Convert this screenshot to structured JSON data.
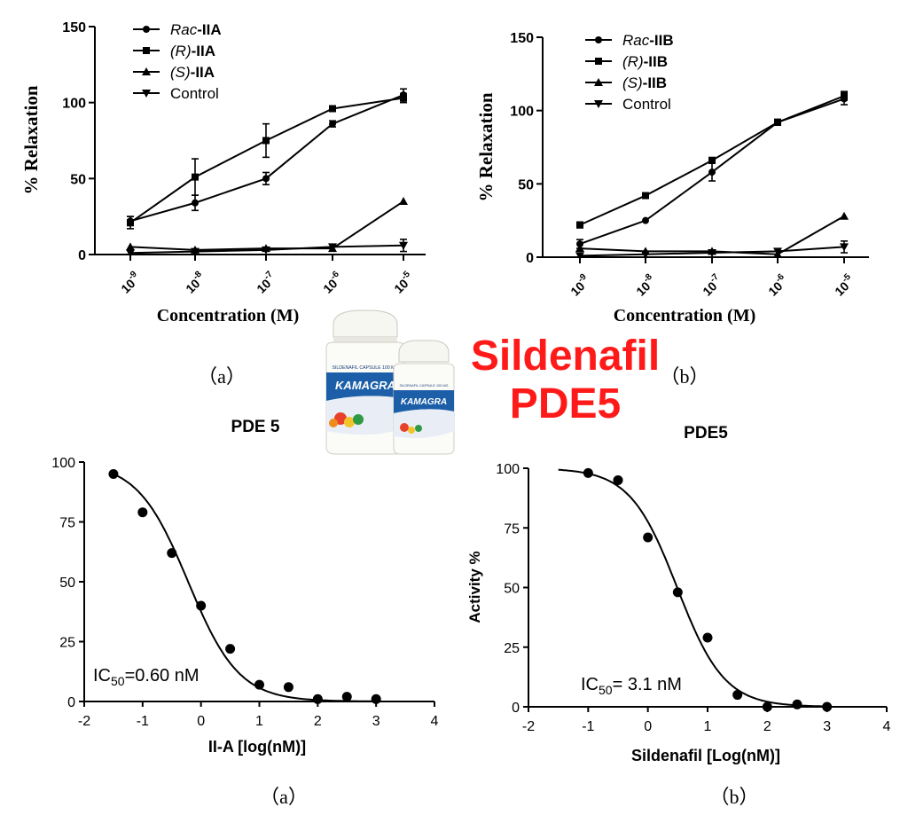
{
  "overlay": {
    "line1": "Sildenafil",
    "line2": "PDE5",
    "color": "#ff1a1a",
    "product_label_brand": "KAMAGRA",
    "product_label_text": "SILDENAFIL CAPSULE 100 MG"
  },
  "chart_data": [
    {
      "id": "top-left",
      "type": "line",
      "panel_label": "（a）",
      "xlabel": "Concentration (M)",
      "ylabel": "% Relaxation",
      "x_scale": "log",
      "x": [
        1e-09,
        1e-08,
        1e-07,
        1e-06,
        1e-05
      ],
      "x_ticks": [
        {
          "base": "10",
          "exp": "-9"
        },
        {
          "base": "10",
          "exp": "-8"
        },
        {
          "base": "10",
          "exp": "-7"
        },
        {
          "base": "10",
          "exp": "-6"
        },
        {
          "base": "10",
          "exp": "-5"
        }
      ],
      "ylim": [
        0,
        150
      ],
      "y_ticks": [
        "0",
        "50",
        "100",
        "150"
      ],
      "legend_position": "top-left",
      "series": [
        {
          "name_italic": "Rac",
          "name_rest": "-IIA",
          "marker": "circle",
          "values": [
            22,
            34,
            50,
            86,
            105
          ],
          "errors": [
            3,
            5,
            4,
            2,
            4
          ]
        },
        {
          "name_italic": "(R)",
          "name_rest": "-IIA",
          "marker": "square",
          "values": [
            21,
            51,
            75,
            96,
            103
          ],
          "errors": [
            4,
            12,
            11,
            1,
            3
          ]
        },
        {
          "name_italic": "(S)",
          "name_rest": "-IIA",
          "marker": "triangle-up",
          "values": [
            5,
            3,
            4,
            4,
            35
          ],
          "errors": [
            1,
            1,
            1,
            1,
            1
          ]
        },
        {
          "name": "Control",
          "marker": "triangle-down",
          "values": [
            1,
            2,
            3,
            5,
            6
          ],
          "errors": [
            0,
            1,
            1,
            1,
            4
          ]
        }
      ]
    },
    {
      "id": "top-right",
      "type": "line",
      "panel_label": "（b）",
      "xlabel": "Concentration (M)",
      "ylabel": "% Relaxation",
      "x_scale": "log",
      "x": [
        1e-09,
        1e-08,
        1e-07,
        1e-06,
        1e-05
      ],
      "x_ticks": [
        {
          "base": "10",
          "exp": "-9"
        },
        {
          "base": "10",
          "exp": "-8"
        },
        {
          "base": "10",
          "exp": "-7"
        },
        {
          "base": "10",
          "exp": "-6"
        },
        {
          "base": "10",
          "exp": "-5"
        }
      ],
      "ylim": [
        0,
        150
      ],
      "y_ticks": [
        "0",
        "50",
        "100",
        "150"
      ],
      "legend_position": "top-left",
      "series": [
        {
          "name_italic": "Rac",
          "name_rest": "-IIB",
          "marker": "circle",
          "values": [
            9,
            25,
            58,
            92,
            108
          ],
          "errors": [
            3,
            1,
            6,
            2,
            4
          ]
        },
        {
          "name_italic": "(R)",
          "name_rest": "-IIB",
          "marker": "square",
          "values": [
            22,
            42,
            66,
            92,
            110
          ],
          "errors": [
            2,
            1,
            2,
            2,
            3
          ]
        },
        {
          "name_italic": "(S)",
          "name_rest": "-IIB",
          "marker": "triangle-up",
          "values": [
            6,
            4,
            4,
            2,
            28
          ],
          "errors": [
            1,
            1,
            1,
            1,
            1
          ]
        },
        {
          "name": "Control",
          "marker": "triangle-down",
          "values": [
            1,
            2,
            3,
            4,
            7
          ],
          "errors": [
            0,
            1,
            1,
            1,
            4
          ]
        }
      ]
    },
    {
      "id": "bottom-left",
      "type": "scatter",
      "title": "PDE 5",
      "panel_label": "（a）",
      "xlabel": "II-A [log(nM)]",
      "ylabel": "",
      "xlim": [
        -2,
        4
      ],
      "ylim": [
        0,
        100
      ],
      "x_ticks": [
        "-2",
        "-1",
        "0",
        "1",
        "2",
        "3",
        "4"
      ],
      "y_ticks": [
        "0",
        "25",
        "50",
        "75",
        "100"
      ],
      "annotation": {
        "prefix": "IC",
        "sub": "50",
        "suffix": "=0.60 nM"
      },
      "fit": {
        "model": "sigmoid",
        "top": 100,
        "bottom": 0,
        "log_ic50": -0.22,
        "hill": 1.0
      },
      "points": [
        {
          "x": -1.5,
          "y": 95
        },
        {
          "x": -1.0,
          "y": 79
        },
        {
          "x": -0.5,
          "y": 62
        },
        {
          "x": 0.0,
          "y": 40
        },
        {
          "x": 0.5,
          "y": 22
        },
        {
          "x": 1.0,
          "y": 7
        },
        {
          "x": 1.5,
          "y": 6
        },
        {
          "x": 2.0,
          "y": 1
        },
        {
          "x": 2.5,
          "y": 2
        },
        {
          "x": 3.0,
          "y": 1
        }
      ]
    },
    {
      "id": "bottom-right",
      "type": "scatter",
      "title": "PDE5",
      "panel_label": "（b）",
      "xlabel": "Sildenafil [Log(nM)]",
      "ylabel": "Activity %",
      "xlim": [
        -2,
        4
      ],
      "ylim": [
        0,
        100
      ],
      "x_ticks": [
        "-2",
        "-1",
        "0",
        "1",
        "2",
        "3",
        "4"
      ],
      "y_ticks": [
        "0",
        "25",
        "50",
        "75",
        "100"
      ],
      "annotation": {
        "prefix": "IC",
        "sub": "50",
        "suffix": "= 3.1 nM"
      },
      "fit": {
        "model": "sigmoid",
        "top": 100,
        "bottom": 0,
        "log_ic50": 0.49,
        "hill": 1.1
      },
      "points": [
        {
          "x": -1.0,
          "y": 98
        },
        {
          "x": -0.5,
          "y": 95
        },
        {
          "x": 0.0,
          "y": 71
        },
        {
          "x": 0.5,
          "y": 48
        },
        {
          "x": 1.0,
          "y": 29
        },
        {
          "x": 1.5,
          "y": 5
        },
        {
          "x": 2.0,
          "y": 0
        },
        {
          "x": 2.5,
          "y": 1
        },
        {
          "x": 3.0,
          "y": 0
        }
      ]
    }
  ]
}
